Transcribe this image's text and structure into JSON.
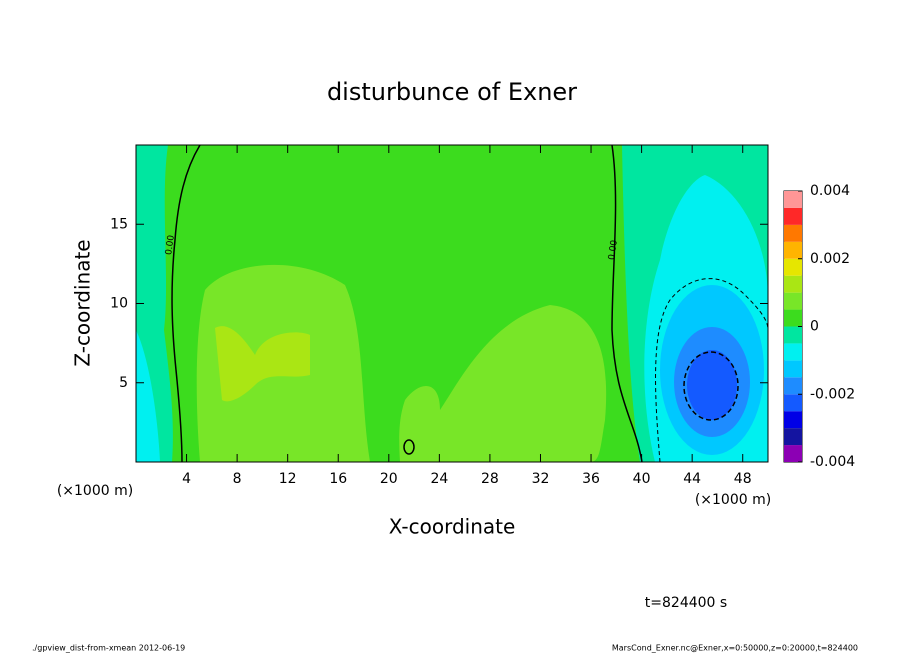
{
  "chart_data": {
    "type": "contour",
    "title": "disturbunce of Exner",
    "x_label": "X-coordinate",
    "y_label": "Z-coordinate",
    "x_unit": "(×1000 m)",
    "y_unit": "(×1000 m)",
    "xlim": [
      0,
      50
    ],
    "xticks": [
      4,
      8,
      12,
      16,
      20,
      24,
      28,
      32,
      36,
      40,
      44,
      48
    ],
    "ylim": [
      0,
      20
    ],
    "yticks": [
      5,
      10,
      15
    ],
    "colorbar": {
      "lim": [
        -0.004,
        0.004
      ],
      "ticks": [
        -0.004,
        -0.002,
        0,
        0.002,
        0.004
      ],
      "colors": [
        "#8c00b4",
        "#1414a0",
        "#0000e6",
        "#145aff",
        "#1e8cff",
        "#00c8ff",
        "#00f0f0",
        "#00e6a0",
        "#3cdc1e",
        "#78e628",
        "#aae614",
        "#e6e600",
        "#ffb400",
        "#ff7800",
        "#ff2828",
        "#ff9696"
      ]
    },
    "contour_labels": [
      "0.00",
      "0.00"
    ],
    "time_label": "t=824400 s",
    "footer_left": "./gpview_dist-from-xmean  2012-06-19",
    "footer_right": "MarsCond_Exner.nc@Exner,x=0:50000,z=0:20000,t=824400"
  }
}
